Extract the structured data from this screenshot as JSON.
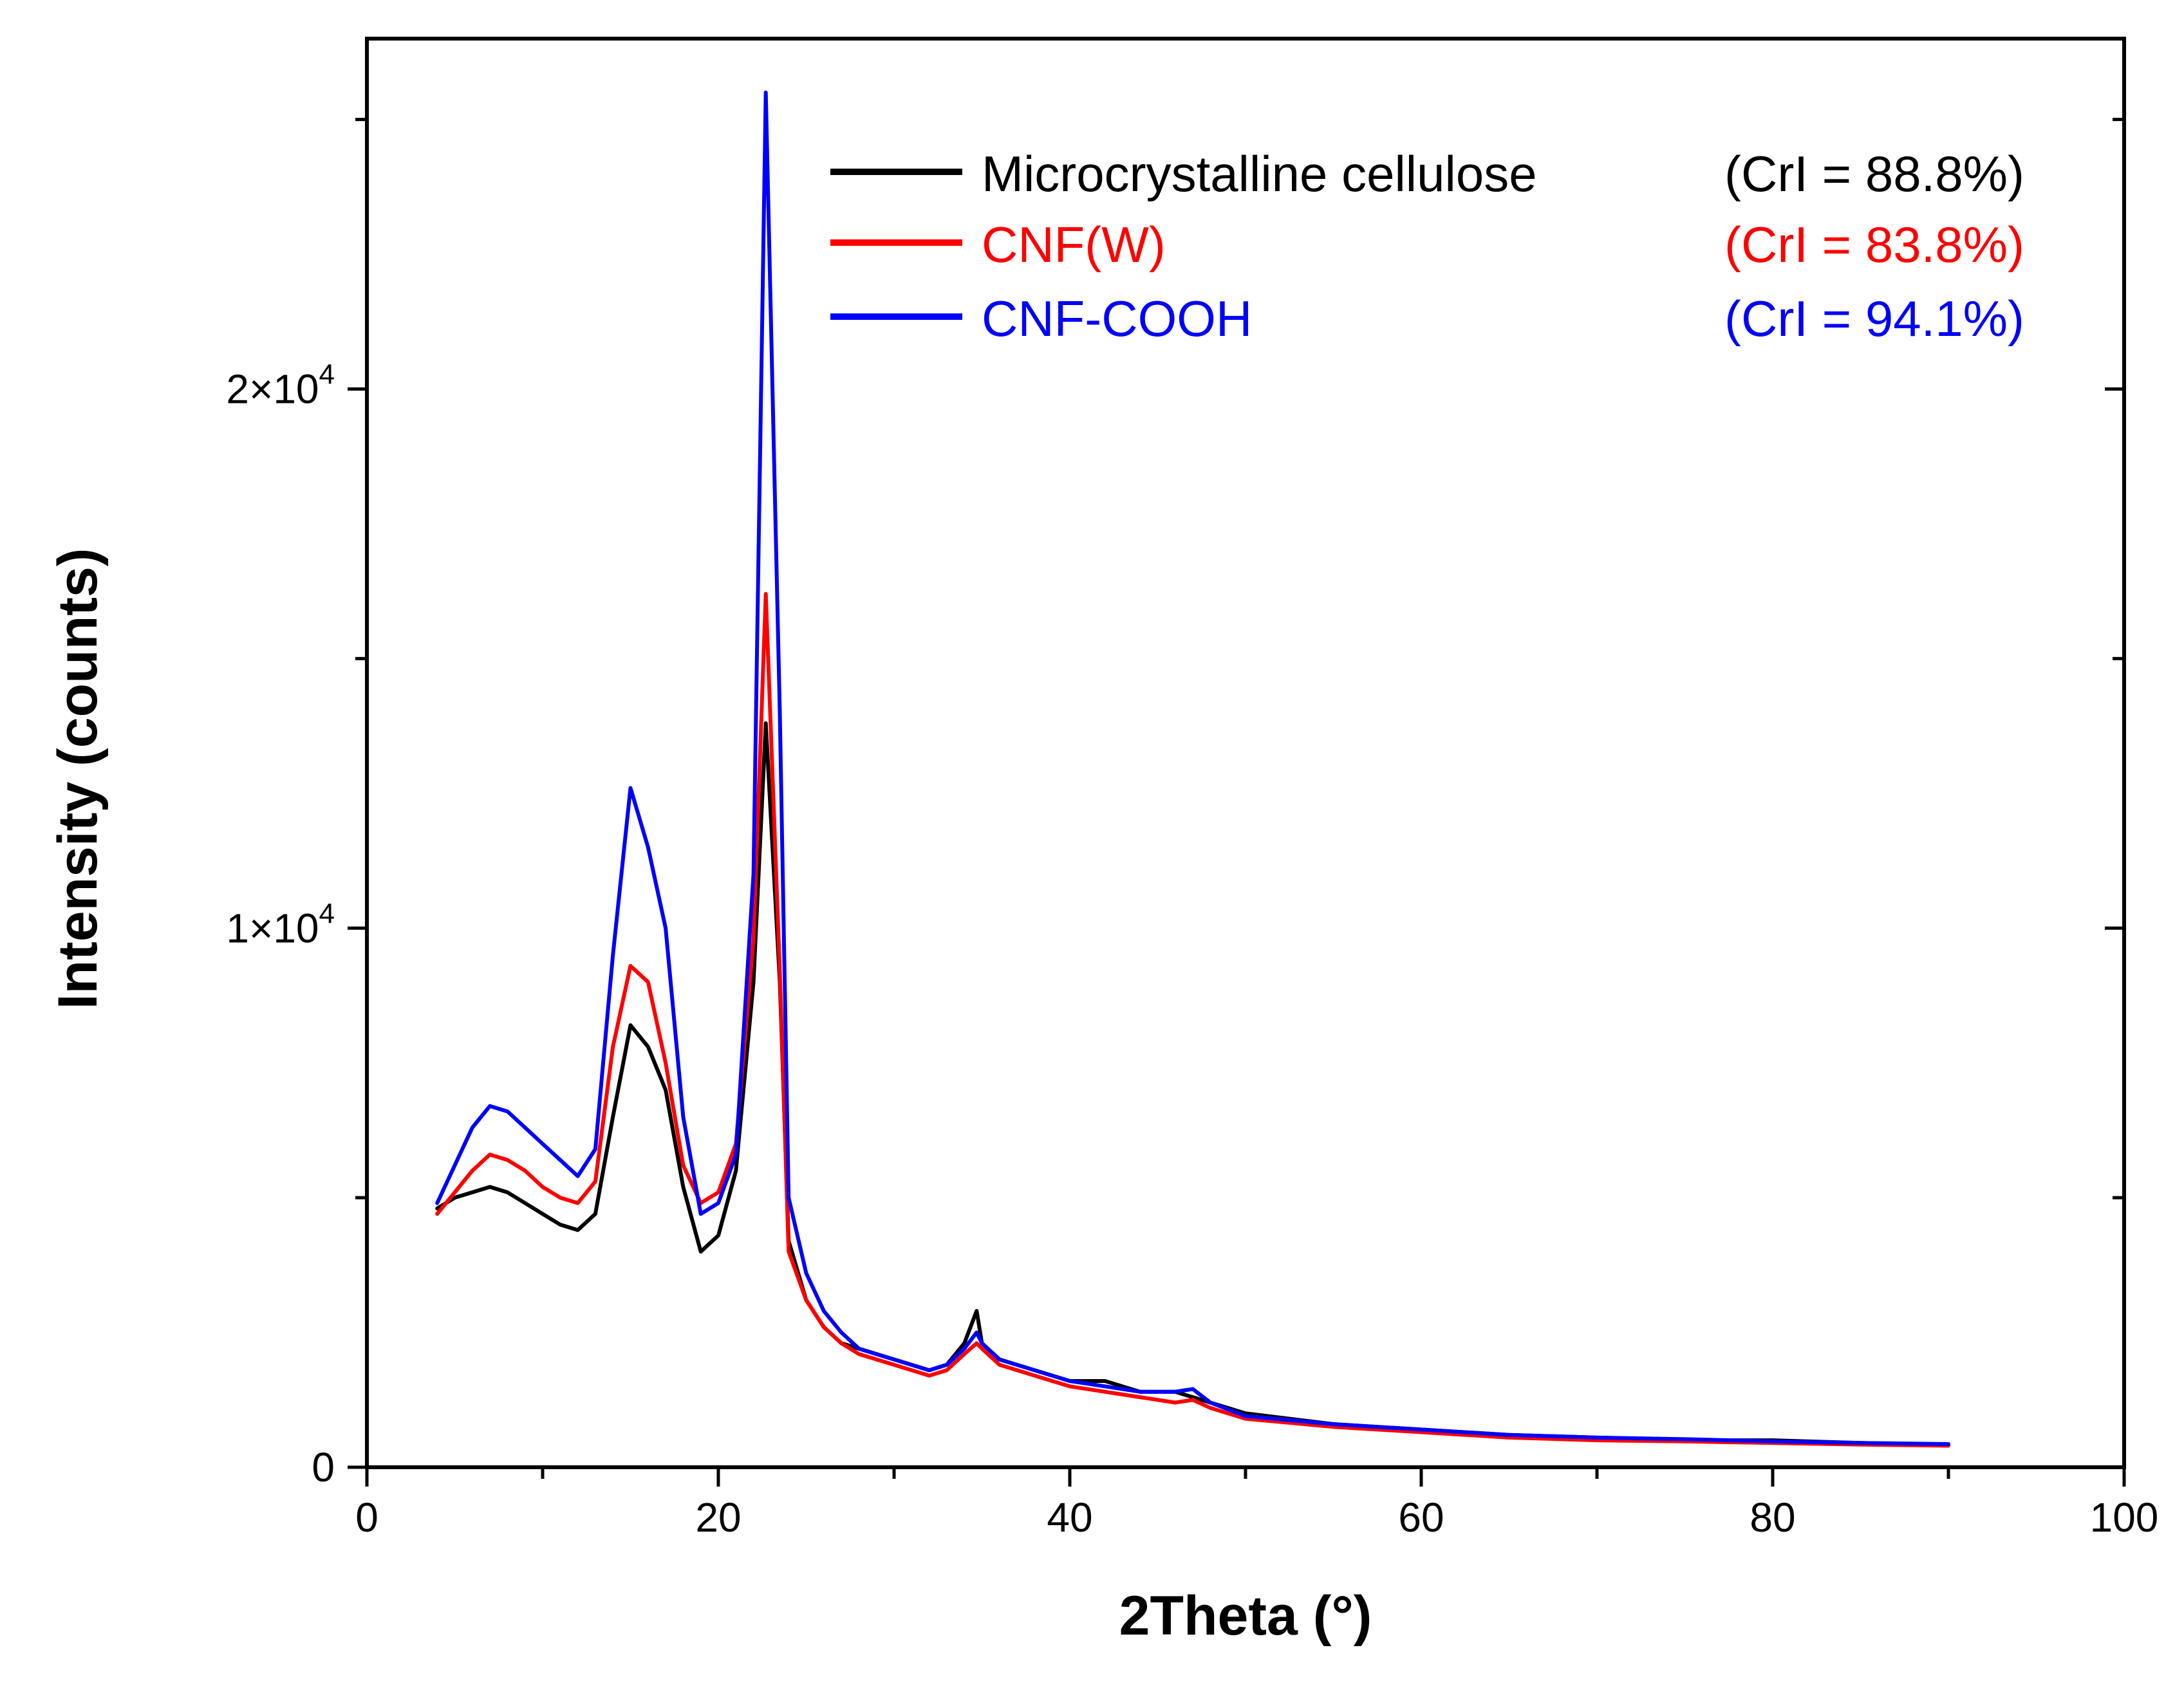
{
  "chart_data": {
    "type": "line",
    "title": "",
    "xlabel": "2Theta (°)",
    "ylabel": "Intensity (counts)",
    "xlim": [
      0,
      100
    ],
    "ylim": [
      0,
      26500
    ],
    "x_ticks": [
      0,
      20,
      40,
      60,
      80,
      100
    ],
    "x_tick_labels": [
      "0",
      "20",
      "40",
      "60",
      "80",
      "100"
    ],
    "x_minor_ticks": [
      10,
      30,
      50,
      70,
      90
    ],
    "y_ticks": [
      0,
      10000,
      20000
    ],
    "y_tick_labels": [
      {
        "base": "0",
        "exp": ""
      },
      {
        "base": "1×10",
        "exp": "4"
      },
      {
        "base": "2×10",
        "exp": "4"
      }
    ],
    "y_minor_ticks": [
      5000,
      15000,
      25000
    ],
    "grid": false,
    "legend_position": "top-right",
    "series": [
      {
        "name": "Microcrystalline cellulose",
        "crl": "(CrI = 88.8%)",
        "color": "#000000",
        "x": [
          4,
          5,
          6,
          7,
          8,
          9,
          10,
          11,
          12,
          13,
          14,
          15,
          16,
          17,
          18,
          19,
          20,
          21,
          22,
          22.7,
          23.5,
          24,
          25,
          26,
          27,
          28,
          30,
          32,
          33,
          34,
          34.7,
          35,
          36,
          38,
          40,
          42,
          44,
          46,
          48,
          50,
          55,
          60,
          65,
          70,
          75,
          80,
          85,
          90
        ],
        "values": [
          4800,
          5000,
          5100,
          5200,
          5100,
          4900,
          4700,
          4500,
          4400,
          4700,
          6500,
          8200,
          7800,
          7000,
          5200,
          4000,
          4300,
          5500,
          9000,
          13800,
          9000,
          4200,
          3100,
          2600,
          2300,
          2200,
          2000,
          1800,
          1900,
          2300,
          2900,
          2300,
          2000,
          1800,
          1600,
          1600,
          1400,
          1400,
          1200,
          1000,
          800,
          700,
          600,
          550,
          500,
          500,
          450,
          420
        ]
      },
      {
        "name": "CNF(W)",
        "crl": "(CrI = 83.8%)",
        "color": "#ff0000",
        "x": [
          4,
          5,
          6,
          7,
          8,
          9,
          10,
          11,
          12,
          13,
          14,
          15,
          16,
          17,
          18,
          19,
          20,
          21,
          22,
          22.7,
          23.5,
          24,
          25,
          26,
          27,
          28,
          30,
          32,
          33,
          34,
          34.7,
          35,
          36,
          38,
          40,
          42,
          44,
          46,
          47,
          48,
          50,
          55,
          60,
          65,
          70,
          75,
          80,
          85,
          90
        ],
        "values": [
          4700,
          5100,
          5500,
          5800,
          5700,
          5500,
          5200,
          5000,
          4900,
          5300,
          7800,
          9300,
          9000,
          7500,
          5600,
          4900,
          5100,
          6000,
          9800,
          16200,
          9200,
          4000,
          3100,
          2600,
          2300,
          2100,
          1900,
          1700,
          1800,
          2100,
          2300,
          2200,
          1900,
          1700,
          1500,
          1400,
          1300,
          1200,
          1250,
          1100,
          900,
          750,
          650,
          550,
          500,
          480,
          450,
          420,
          400
        ]
      },
      {
        "name": "CNF-COOH",
        "crl": "(CrI = 94.1%)",
        "color": "#0000ff",
        "x": [
          4,
          5,
          6,
          7,
          8,
          9,
          10,
          11,
          12,
          13,
          14,
          15,
          16,
          17,
          18,
          19,
          20,
          21,
          22,
          22.7,
          23.5,
          24,
          25,
          26,
          27,
          28,
          30,
          32,
          33,
          34,
          34.7,
          35,
          36,
          38,
          40,
          42,
          44,
          46,
          47,
          48,
          50,
          55,
          60,
          65,
          70,
          75,
          80,
          85,
          90
        ],
        "values": [
          4900,
          5600,
          6300,
          6700,
          6600,
          6300,
          6000,
          5700,
          5400,
          5900,
          9500,
          12600,
          11500,
          10000,
          6500,
          4700,
          4900,
          5800,
          11000,
          25500,
          14000,
          5000,
          3600,
          2900,
          2500,
          2200,
          2000,
          1800,
          1900,
          2200,
          2500,
          2300,
          2000,
          1800,
          1600,
          1500,
          1400,
          1400,
          1450,
          1200,
          950,
          800,
          700,
          600,
          550,
          520,
          480,
          450,
          430
        ]
      }
    ]
  }
}
